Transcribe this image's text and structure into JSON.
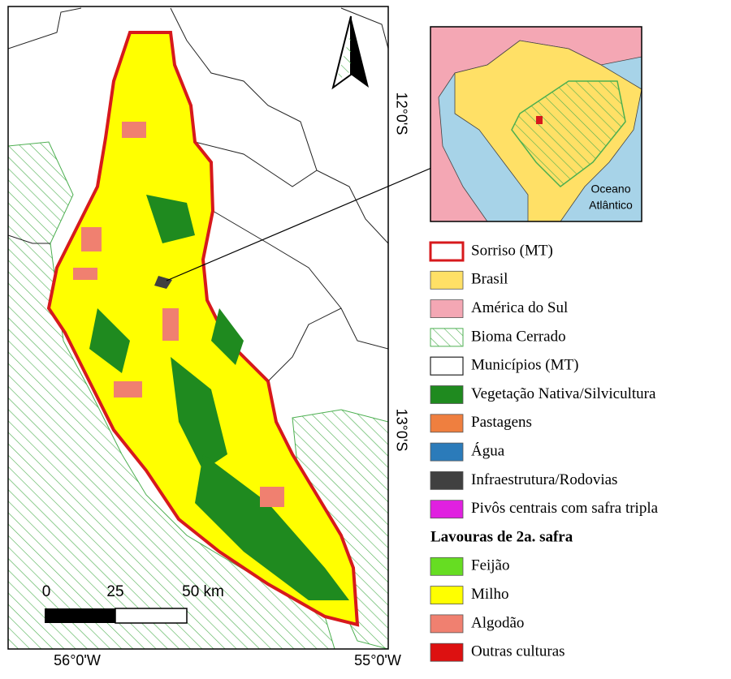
{
  "map": {
    "coordinates": {
      "lat_top": "12°0'S",
      "lat_bottom": "13°0'S",
      "lon_left": "56°0'W",
      "lon_right": "55°0'W"
    },
    "scale_bar": {
      "labels": [
        "0",
        "25",
        "50 km"
      ]
    },
    "inset": {
      "ocean_label": [
        "Oceano",
        "Atlântico"
      ]
    },
    "legend": {
      "items": [
        {
          "label": "Sorriso (MT)",
          "color": "#d7191c",
          "swatch": "outline"
        },
        {
          "label": "Brasil",
          "color": "#ffe066",
          "swatch": "fill"
        },
        {
          "label": "América do Sul",
          "color": "#f4a7b4",
          "swatch": "fill"
        },
        {
          "label": "Bioma Cerrado",
          "color": "#4caf50",
          "swatch": "hatch"
        },
        {
          "label": "Municípios (MT)",
          "color": "#222222",
          "swatch": "outline"
        },
        {
          "label": "Vegetação Nativa/Silvicultura",
          "color": "#1f8a1f",
          "swatch": "fill"
        },
        {
          "label": "Pastagens",
          "color": "#ef7f3f",
          "swatch": "fill"
        },
        {
          "label": "Água",
          "color": "#2b7bba",
          "swatch": "fill"
        },
        {
          "label": "Infraestrutura/Rodovias",
          "color": "#404040",
          "swatch": "fill"
        },
        {
          "label": "Pivôs centrais com safra tripla",
          "color": "#e020e0",
          "swatch": "fill"
        }
      ],
      "section_title": "Lavouras de 2a. safra",
      "crops": [
        {
          "label": "Feijão",
          "color": "#66dd22",
          "swatch": "fill"
        },
        {
          "label": "Milho",
          "color": "#ffff00",
          "swatch": "fill"
        },
        {
          "label": "Algodão",
          "color": "#f08070",
          "swatch": "fill"
        },
        {
          "label": "Outras culturas",
          "color": "#dd1111",
          "swatch": "fill"
        }
      ]
    }
  }
}
